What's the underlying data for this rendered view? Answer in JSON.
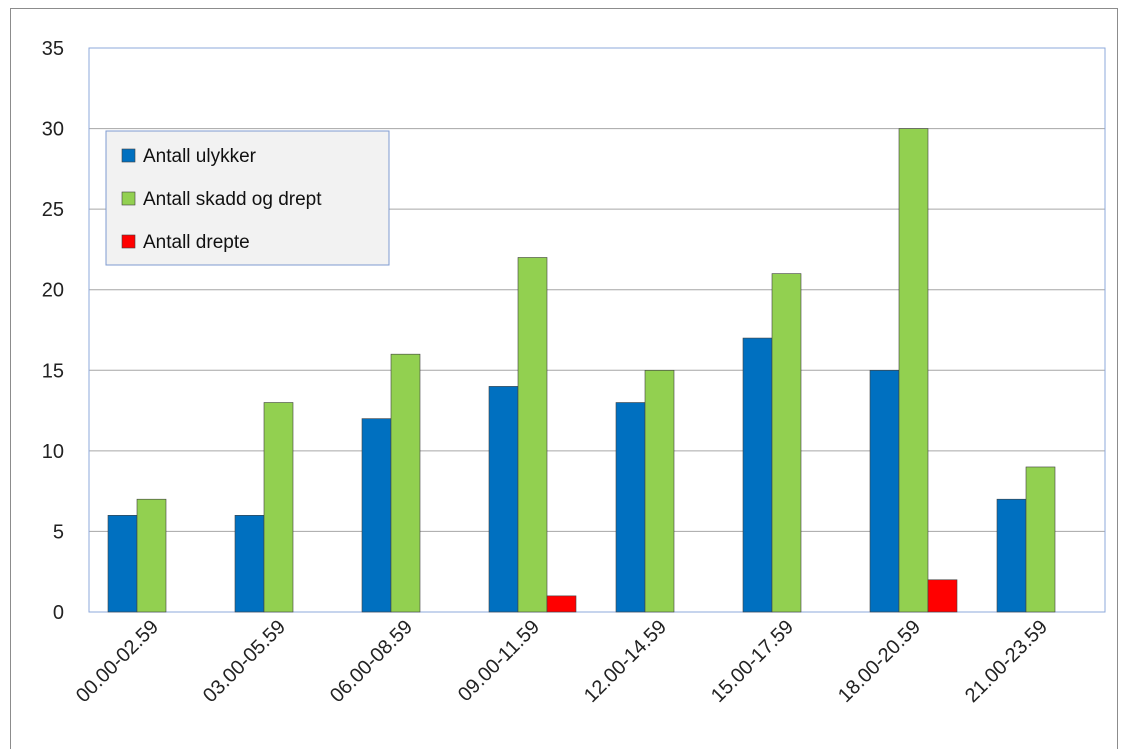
{
  "chart_data": {
    "type": "bar",
    "title": "",
    "xlabel": "",
    "ylabel": "",
    "ylim": [
      0,
      35
    ],
    "yticks": [
      0,
      5,
      10,
      15,
      20,
      25,
      30,
      35
    ],
    "grid": true,
    "legend": "top-left",
    "categories": [
      "00.00-02.59",
      "03.00-05.59",
      "06.00-08.59",
      "09.00-11.59",
      "12.00-14.59",
      "15.00-17.59",
      "18.00-20.59",
      "21.00-23.59"
    ],
    "series": [
      {
        "name": "Antall ulykker",
        "color": "#0070c0",
        "values": [
          6,
          6,
          12,
          14,
          13,
          17,
          15,
          7
        ]
      },
      {
        "name": "Antall skadd og drept",
        "color": "#92d050",
        "values": [
          7,
          13,
          16,
          22,
          15,
          21,
          30,
          9
        ]
      },
      {
        "name": "Antall drepte",
        "color": "#ff0000",
        "values": [
          0,
          0,
          0,
          1,
          0,
          0,
          2,
          0
        ]
      }
    ]
  }
}
